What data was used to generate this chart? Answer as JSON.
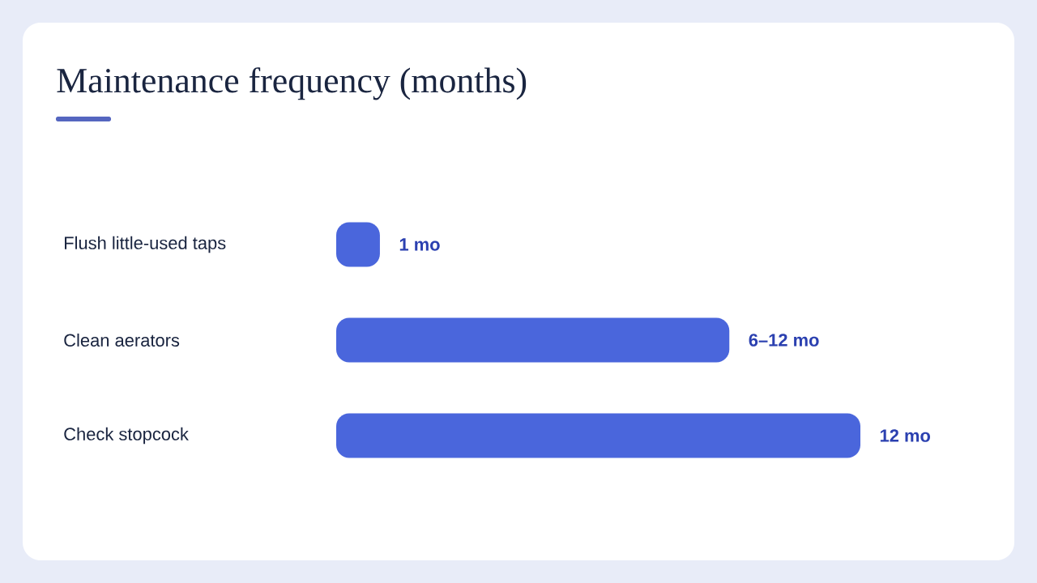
{
  "chart_data": {
    "type": "bar",
    "orientation": "horizontal",
    "xlim": [
      0,
      12
    ],
    "title": "Maintenance frequency (months)",
    "categories": [
      "Flush little-used taps",
      "Clean aerators",
      "Check stopcock"
    ],
    "values": [
      1,
      9,
      12
    ],
    "value_labels": [
      "1 mo",
      "6–12 mo",
      "12 mo"
    ],
    "color": "#4a66dc"
  }
}
